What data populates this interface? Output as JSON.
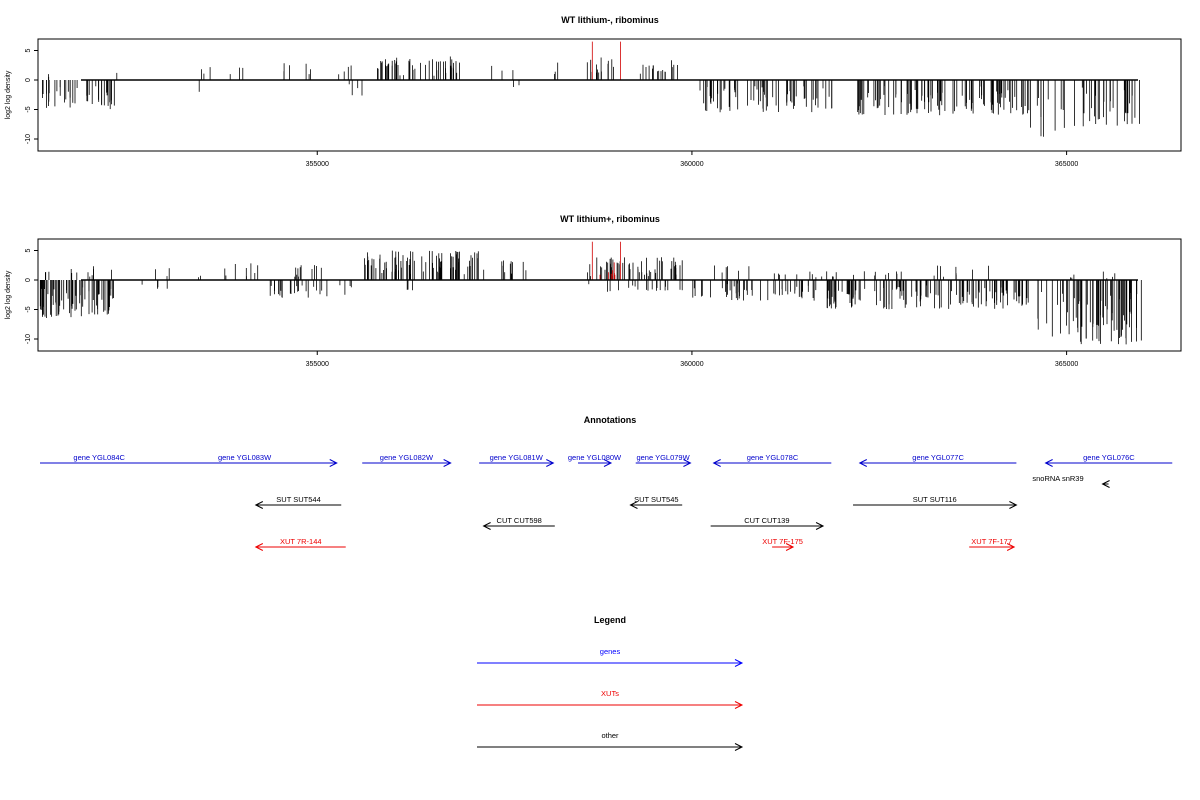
{
  "chart_data": [
    {
      "type": "bar",
      "title": "WT lithium-, ribominus",
      "ylabel": "log2 log density",
      "xlim": [
        351300,
        366500
      ],
      "ylim": [
        -12,
        7.5
      ],
      "xticks": [
        355000,
        360000,
        365000
      ],
      "yticks": [
        5,
        0,
        -5,
        -10
      ],
      "series": [
        {
          "strand": "+",
          "color": "#000000",
          "segments": [
            {
              "from": 351350,
              "to": 351450,
              "max": 1,
              "density": 0.2
            },
            {
              "from": 352300,
              "to": 352350,
              "max": 1.5,
              "density": 0.3
            },
            {
              "from": 353300,
              "to": 354100,
              "max": 2.5,
              "density": 0.08
            },
            {
              "from": 354300,
              "to": 355000,
              "max": 3,
              "density": 0.1
            },
            {
              "from": 355200,
              "to": 355700,
              "max": 2.5,
              "density": 0.08
            },
            {
              "from": 355800,
              "to": 356300,
              "max": 4,
              "density": 0.55
            },
            {
              "from": 356300,
              "to": 356900,
              "max": 4,
              "density": 0.45
            },
            {
              "from": 357200,
              "to": 357800,
              "max": 3,
              "density": 0.06
            },
            {
              "from": 358100,
              "to": 358300,
              "max": 3,
              "density": 0.15
            },
            {
              "from": 358600,
              "to": 359000,
              "max": 4,
              "density": 0.35
            },
            {
              "from": 359300,
              "to": 359650,
              "max": 3,
              "density": 0.4
            },
            {
              "from": 359650,
              "to": 359900,
              "max": 3.5,
              "density": 0.2
            }
          ]
        },
        {
          "strand": "-",
          "color": "#000000",
          "segments": [
            {
              "from": 351300,
              "to": 352300,
              "max": -5,
              "density": 0.45
            },
            {
              "from": 353400,
              "to": 353450,
              "max": -2,
              "density": 1
            },
            {
              "from": 355300,
              "to": 355600,
              "max": -3,
              "density": 0.15
            },
            {
              "from": 357600,
              "to": 357700,
              "max": -1.5,
              "density": 0.2
            },
            {
              "from": 360100,
              "to": 361900,
              "max": -5.5,
              "density": 0.4
            },
            {
              "from": 362200,
              "to": 364500,
              "max": -6,
              "density": 0.5
            },
            {
              "from": 364500,
              "to": 364800,
              "max": -10,
              "density": 0.25
            },
            {
              "from": 364800,
              "to": 365200,
              "max": -9,
              "density": 0.15
            },
            {
              "from": 365200,
              "to": 366000,
              "max": -8,
              "density": 0.4
            }
          ]
        },
        {
          "strand": "+",
          "color": "#d00000",
          "segments": [
            {
              "from": 358660,
              "to": 358680,
              "max": 6.5,
              "density": 1
            },
            {
              "from": 359030,
              "to": 359060,
              "max": 6.5,
              "density": 1
            }
          ]
        }
      ]
    },
    {
      "type": "bar",
      "title": "WT lithium+, ribominus",
      "ylabel": "log2 log density",
      "xlim": [
        351300,
        366500
      ],
      "ylim": [
        -12,
        7.5
      ],
      "xticks": [
        355000,
        360000,
        365000
      ],
      "yticks": [
        5,
        0,
        -5,
        -10
      ],
      "series": [
        {
          "strand": "+",
          "color": "#000000",
          "segments": [
            {
              "from": 351350,
              "to": 351450,
              "max": 2,
              "density": 0.3
            },
            {
              "from": 351600,
              "to": 352300,
              "max": 2.5,
              "density": 0.15
            },
            {
              "from": 352800,
              "to": 353500,
              "max": 2.5,
              "density": 0.08
            },
            {
              "from": 353700,
              "to": 354300,
              "max": 3,
              "density": 0.15
            },
            {
              "from": 354700,
              "to": 355100,
              "max": 3,
              "density": 0.3
            },
            {
              "from": 355600,
              "to": 357200,
              "max": 5,
              "density": 0.55
            },
            {
              "from": 357200,
              "to": 357800,
              "max": 4,
              "density": 0.2
            },
            {
              "from": 358600,
              "to": 358700,
              "max": 3,
              "density": 0.3
            },
            {
              "from": 358700,
              "to": 359100,
              "max": 4,
              "density": 0.5
            },
            {
              "from": 359100,
              "to": 359900,
              "max": 4,
              "density": 0.45
            },
            {
              "from": 360100,
              "to": 360800,
              "max": 2.5,
              "density": 0.1
            },
            {
              "from": 361000,
              "to": 363000,
              "max": 1.5,
              "density": 0.12
            },
            {
              "from": 363000,
              "to": 364000,
              "max": 2.5,
              "density": 0.1
            },
            {
              "from": 365000,
              "to": 365800,
              "max": 1.5,
              "density": 0.1
            }
          ]
        },
        {
          "strand": "-",
          "color": "#000000",
          "segments": [
            {
              "from": 351300,
              "to": 352300,
              "max": -6.5,
              "density": 0.8
            },
            {
              "from": 352500,
              "to": 353000,
              "max": -1.5,
              "density": 0.1
            },
            {
              "from": 354300,
              "to": 355500,
              "max": -3,
              "density": 0.25
            },
            {
              "from": 356200,
              "to": 356500,
              "max": -2,
              "density": 0.1
            },
            {
              "from": 358600,
              "to": 360000,
              "max": -2,
              "density": 0.15
            },
            {
              "from": 360000,
              "to": 361800,
              "max": -3.5,
              "density": 0.3
            },
            {
              "from": 361800,
              "to": 364500,
              "max": -5,
              "density": 0.55
            },
            {
              "from": 364500,
              "to": 364900,
              "max": -10,
              "density": 0.2
            },
            {
              "from": 364900,
              "to": 366000,
              "max": -11,
              "density": 0.7
            }
          ]
        },
        {
          "strand": "+",
          "color": "#d00000",
          "segments": [
            {
              "from": 358660,
              "to": 358680,
              "max": 6.5,
              "density": 1
            },
            {
              "from": 359030,
              "to": 359060,
              "max": 6.5,
              "density": 1
            },
            {
              "from": 358750,
              "to": 359000,
              "max": 3,
              "density": 0.3
            }
          ]
        }
      ]
    }
  ],
  "annotations": {
    "title": "Annotations",
    "xlim": [
      351300,
      366500
    ],
    "features": [
      {
        "label": "gene YGL084C",
        "color": "#0000cc",
        "start": 351300,
        "end": 352880,
        "dir": "none",
        "row": 0
      },
      {
        "label": "gene YGL083W",
        "color": "#0000cc",
        "start": 352800,
        "end": 355260,
        "dir": "right",
        "row": 0
      },
      {
        "label": "gene YGL082W",
        "color": "#0000cc",
        "start": 355600,
        "end": 356780,
        "dir": "right",
        "row": 0
      },
      {
        "label": "gene YGL081W",
        "color": "#0000cc",
        "start": 357160,
        "end": 358150,
        "dir": "right",
        "row": 0
      },
      {
        "label": "gene YGL080W",
        "color": "#0000cc",
        "start": 358480,
        "end": 358920,
        "dir": "right",
        "row": 0
      },
      {
        "label": "gene YGL079W",
        "color": "#0000cc",
        "start": 359250,
        "end": 359980,
        "dir": "right",
        "row": 0
      },
      {
        "label": "gene YGL078C",
        "color": "#0000cc",
        "start": 360290,
        "end": 361860,
        "dir": "left",
        "row": 0
      },
      {
        "label": "gene YGL077C",
        "color": "#0000cc",
        "start": 362240,
        "end": 364330,
        "dir": "left",
        "row": 0
      },
      {
        "label": "gene YGL076C",
        "color": "#0000cc",
        "start": 364720,
        "end": 366410,
        "dir": "left",
        "row": 0
      },
      {
        "label": "snoRNA snR39",
        "color": "#000000",
        "start": 365480,
        "end": 365560,
        "dir": "left",
        "row": 1
      },
      {
        "label": "SUT SUT544",
        "color": "#000000",
        "start": 354180,
        "end": 355320,
        "dir": "left",
        "row": 2
      },
      {
        "label": "SUT SUT545",
        "color": "#000000",
        "start": 359180,
        "end": 359870,
        "dir": "left",
        "row": 2
      },
      {
        "label": "SUT SUT116",
        "color": "#000000",
        "start": 362150,
        "end": 364330,
        "dir": "right",
        "row": 2
      },
      {
        "label": "CUT CUT598",
        "color": "#000000",
        "start": 357220,
        "end": 358170,
        "dir": "left",
        "row": 3
      },
      {
        "label": "CUT CUT139",
        "color": "#000000",
        "start": 360250,
        "end": 361750,
        "dir": "right",
        "row": 3
      },
      {
        "label": "XUT 7R-144",
        "color": "#ee0000",
        "start": 354180,
        "end": 355380,
        "dir": "left",
        "row": 4
      },
      {
        "label": "XUT 7F-175",
        "color": "#ee0000",
        "start": 361070,
        "end": 361350,
        "dir": "right",
        "row": 4
      },
      {
        "label": "XUT 7F-177",
        "color": "#ee0000",
        "start": 363700,
        "end": 364300,
        "dir": "right",
        "row": 4
      }
    ]
  },
  "legend": {
    "title": "Legend",
    "items": [
      {
        "label": "genes",
        "color": "#0000ff"
      },
      {
        "label": "XUTs",
        "color": "#ee0000"
      },
      {
        "label": "other",
        "color": "#000000"
      }
    ]
  }
}
